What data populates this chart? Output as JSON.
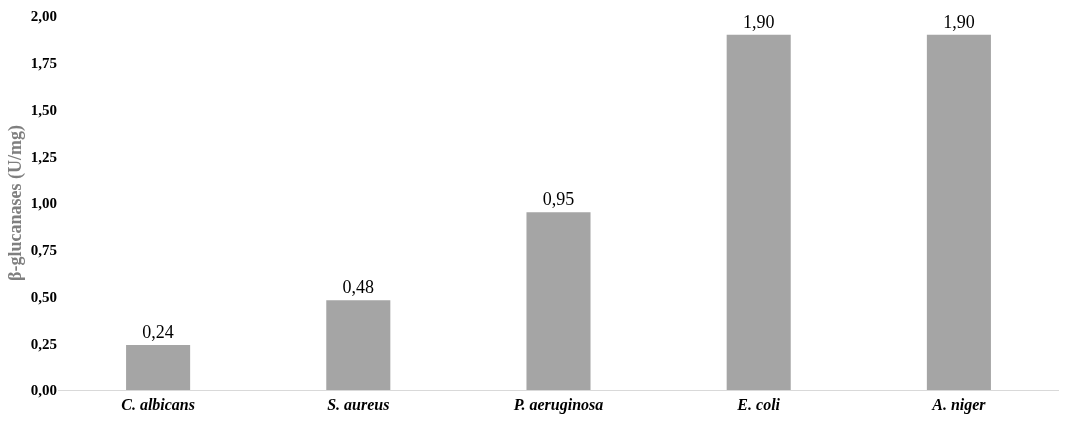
{
  "chart_data": {
    "type": "bar",
    "ylabel": "β-glucanases (U/mg)",
    "categories": [
      "C. albicans",
      "S. aureus",
      "P. aeruginosa",
      "E. coli",
      "A. niger"
    ],
    "values": [
      0.24,
      0.48,
      0.95,
      1.9,
      1.9
    ],
    "value_labels": [
      "0,24",
      "0,48",
      "0,95",
      "1,90",
      "1,90"
    ],
    "color": "#a5a5a5",
    "ylim": [
      0,
      2
    ],
    "yticks": [
      {
        "value": 0,
        "label": "0,00"
      },
      {
        "value": 0.25,
        "label": "0,25"
      },
      {
        "value": 0.5,
        "label": "0,50"
      },
      {
        "value": 0.75,
        "label": "0,75"
      },
      {
        "value": 1,
        "label": "1,00"
      },
      {
        "value": 1.25,
        "label": "1,25"
      },
      {
        "value": 1.5,
        "label": "1,50"
      },
      {
        "value": 1.75,
        "label": "1,75"
      },
      {
        "value": 2,
        "label": "2,00"
      }
    ],
    "grid": false
  }
}
